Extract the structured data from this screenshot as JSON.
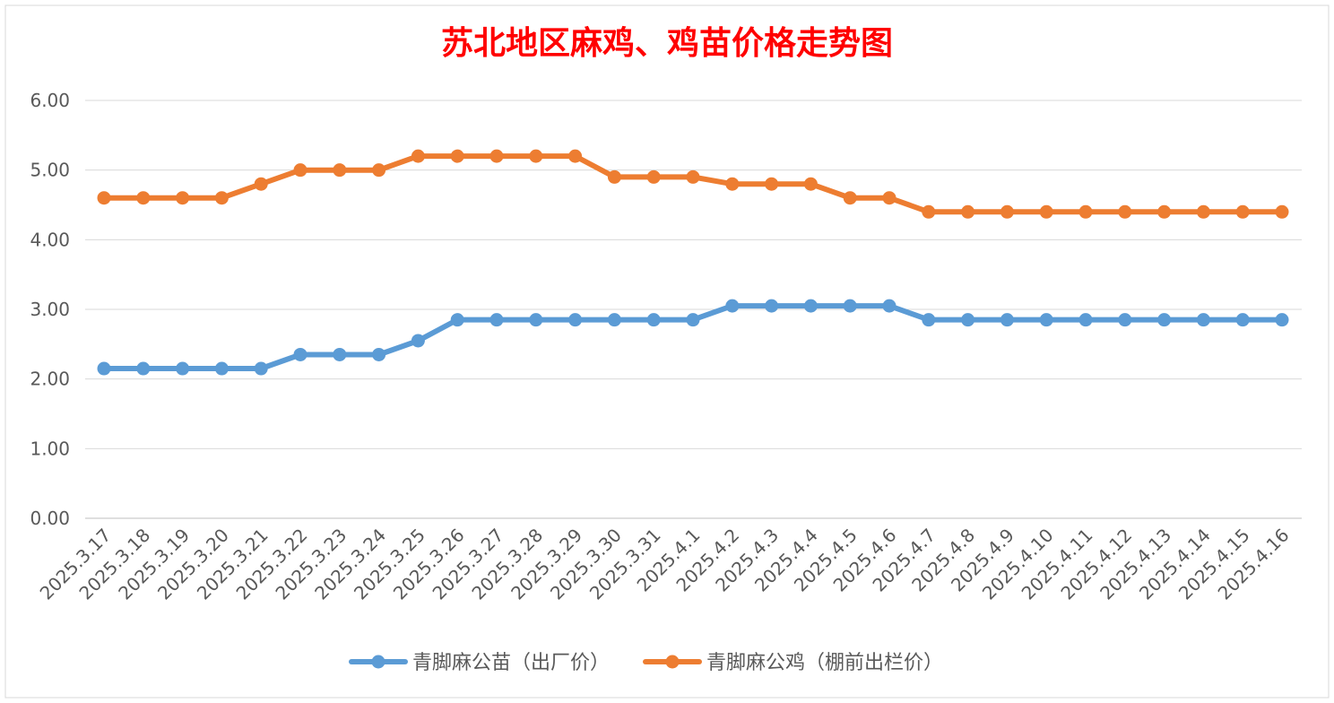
{
  "chart_data": {
    "type": "line",
    "title": "苏北地区麻鸡、鸡苗价格走势图",
    "title_color": "#FF0000",
    "xlabel": "",
    "ylabel": "",
    "ylim": [
      0,
      6
    ],
    "y_ticks": [
      "0.00",
      "1.00",
      "2.00",
      "3.00",
      "4.00",
      "5.00",
      "6.00"
    ],
    "grid": "horizontal",
    "legend_position": "bottom",
    "categories": [
      "2025.3.17",
      "2025.3.18",
      "2025.3.19",
      "2025.3.20",
      "2025.3.21",
      "2025.3.22",
      "2025.3.23",
      "2025.3.24",
      "2025.3.25",
      "2025.3.26",
      "2025.3.27",
      "2025.3.28",
      "2025.3.29",
      "2025.3.30",
      "2025.3.31",
      "2025.4.1",
      "2025.4.2",
      "2025.4.3",
      "2025.4.4",
      "2025.4.5",
      "2025.4.6",
      "2025.4.7",
      "2025.4.8",
      "2025.4.9",
      "2025.4.10",
      "2025.4.11",
      "2025.4.12",
      "2025.4.13",
      "2025.4.14",
      "2025.4.15",
      "2025.4.16"
    ],
    "series": [
      {
        "name": "青脚麻公苗（出厂价）",
        "color": "#5B9BD5",
        "values": [
          2.15,
          2.15,
          2.15,
          2.15,
          2.15,
          2.35,
          2.35,
          2.35,
          2.55,
          2.85,
          2.85,
          2.85,
          2.85,
          2.85,
          2.85,
          2.85,
          3.05,
          3.05,
          3.05,
          3.05,
          3.05,
          2.85,
          2.85,
          2.85,
          2.85,
          2.85,
          2.85,
          2.85,
          2.85,
          2.85,
          2.85
        ]
      },
      {
        "name": "青脚麻公鸡（棚前出栏价）",
        "color": "#ED7D31",
        "values": [
          4.6,
          4.6,
          4.6,
          4.6,
          4.8,
          5.0,
          5.0,
          5.0,
          5.2,
          5.2,
          5.2,
          5.2,
          5.2,
          4.9,
          4.9,
          4.9,
          4.8,
          4.8,
          4.8,
          4.6,
          4.6,
          4.4,
          4.4,
          4.4,
          4.4,
          4.4,
          4.4,
          4.4,
          4.4,
          4.4,
          4.4
        ]
      }
    ]
  }
}
